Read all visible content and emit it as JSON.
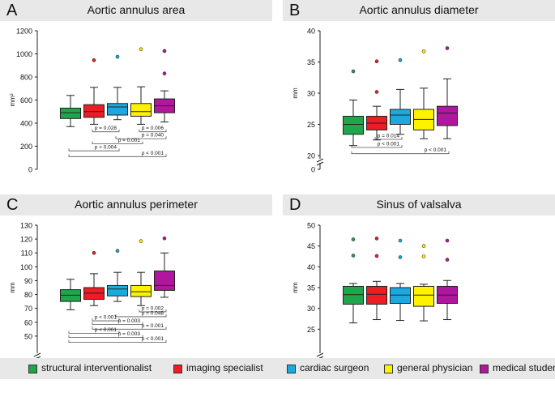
{
  "chart_data": [
    {
      "type": "boxplot",
      "letter": "A",
      "title": "Aortic annulus area",
      "ylabel": "mm²",
      "ylim": [
        0,
        1200
      ],
      "yticks": [
        0,
        200,
        400,
        600,
        800,
        1000,
        1200
      ],
      "axis_break": false,
      "series": [
        {
          "name": "structural interventionalist",
          "whisker_low": 370,
          "q1": 440,
          "median": 490,
          "q3": 530,
          "whisker_high": 640,
          "outliers": []
        },
        {
          "name": "imaging specialist",
          "whisker_low": 390,
          "q1": 450,
          "median": 500,
          "q3": 560,
          "whisker_high": 710,
          "outliers": [
            945
          ]
        },
        {
          "name": "cardiac surgeon",
          "whisker_low": 430,
          "q1": 470,
          "median": 540,
          "q3": 570,
          "whisker_high": 710,
          "outliers": [
            975
          ]
        },
        {
          "name": "general physician",
          "whisker_low": 390,
          "q1": 460,
          "median": 500,
          "q3": 570,
          "whisker_high": 715,
          "outliers": [
            1040
          ]
        },
        {
          "name": "medical student",
          "whisker_low": 410,
          "q1": 490,
          "median": 550,
          "q3": 610,
          "whisker_high": 680,
          "outliers": [
            830,
            1025
          ]
        }
      ],
      "comparisons": [
        {
          "from": 1,
          "to": 2,
          "label": "p = 0.028",
          "y": 325
        },
        {
          "from": 3,
          "to": 4,
          "label": "p = 0.006",
          "y": 325
        },
        {
          "from": 2,
          "to": 4,
          "label": "p = 0.040",
          "y": 265
        },
        {
          "from": 1,
          "to": 3,
          "label": "p = 0.001",
          "y": 220
        },
        {
          "from": 0,
          "to": 2,
          "label": "p = 0.004",
          "y": 160
        },
        {
          "from": 0,
          "to": 4,
          "label": "p < 0.001",
          "y": 110
        }
      ]
    },
    {
      "type": "boxplot",
      "letter": "B",
      "title": "Aortic annulus diameter",
      "ylabel": "mm",
      "ylim": [
        20,
        40
      ],
      "yticks": [
        0,
        20,
        25,
        30,
        35,
        40
      ],
      "axis_break": true,
      "series": [
        {
          "name": "structural interventionalist",
          "whisker_low": 21.6,
          "q1": 23.4,
          "median": 25.0,
          "q3": 26.3,
          "whisker_high": 28.9,
          "outliers": [
            33.5
          ]
        },
        {
          "name": "imaging specialist",
          "whisker_low": 22.5,
          "q1": 24.1,
          "median": 25.2,
          "q3": 26.3,
          "whisker_high": 27.9,
          "outliers": [
            30.2,
            35.1
          ]
        },
        {
          "name": "cardiac surgeon",
          "whisker_low": 23.4,
          "q1": 25.0,
          "median": 26.5,
          "q3": 27.4,
          "whisker_high": 30.6,
          "outliers": [
            35.3
          ]
        },
        {
          "name": "general physician",
          "whisker_low": 22.7,
          "q1": 24.1,
          "median": 25.8,
          "q3": 27.4,
          "whisker_high": 30.8,
          "outliers": [
            36.7
          ]
        },
        {
          "name": "medical student",
          "whisker_low": 22.7,
          "q1": 24.8,
          "median": 26.8,
          "q3": 27.9,
          "whisker_high": 32.3,
          "outliers": [
            37.2
          ]
        }
      ],
      "comparisons": [
        {
          "from": 1,
          "to": 2,
          "label": "p = 0.014",
          "y": 22.6
        },
        {
          "from": 0,
          "to": 2,
          "label": "p < 0.001",
          "y": 21.3
        },
        {
          "from": 0,
          "to": 4,
          "label": "p < 0.001",
          "y": 20.3
        }
      ]
    },
    {
      "type": "boxplot",
      "letter": "C",
      "title": "Aortic annulus perimeter",
      "ylabel": "mm",
      "ylim": [
        40,
        130
      ],
      "yticks": [
        0,
        50,
        60,
        70,
        80,
        90,
        100,
        110,
        120,
        130
      ],
      "axis_break": true,
      "series": [
        {
          "name": "structural interventionalist",
          "whisker_low": 69,
          "q1": 75,
          "median": 79.5,
          "q3": 83.5,
          "whisker_high": 91,
          "outliers": []
        },
        {
          "name": "imaging specialist",
          "whisker_low": 72,
          "q1": 76.5,
          "median": 81,
          "q3": 85,
          "whisker_high": 95,
          "outliers": [
            110
          ]
        },
        {
          "name": "cardiac surgeon",
          "whisker_low": 75,
          "q1": 79,
          "median": 84,
          "q3": 86.5,
          "whisker_high": 96,
          "outliers": [
            111.5
          ]
        },
        {
          "name": "general physician",
          "whisker_low": 72,
          "q1": 78.5,
          "median": 82,
          "q3": 86.5,
          "whisker_high": 96,
          "outliers": [
            118.5
          ]
        },
        {
          "name": "medical student",
          "whisker_low": 78,
          "q1": 83,
          "median": 86.5,
          "q3": 97,
          "whisker_high": 110,
          "outliers": [
            120.5
          ]
        }
      ],
      "comparisons": [
        {
          "from": 3,
          "to": 4,
          "label": "p = 0.002",
          "y": 67.5
        },
        {
          "from": 2,
          "to": 4,
          "label": "p = 0.048",
          "y": 64
        },
        {
          "from": 1,
          "to": 2,
          "label": "p < 0.001",
          "y": 61
        },
        {
          "from": 1,
          "to": 3,
          "label": "p = 0.003",
          "y": 58.5
        },
        {
          "from": 1,
          "to": 4,
          "label": "p = 0.001",
          "y": 55
        },
        {
          "from": 0,
          "to": 2,
          "label": "p < 0.001",
          "y": 52
        },
        {
          "from": 0,
          "to": 3,
          "label": "p = 0.003",
          "y": 49
        },
        {
          "from": 0,
          "to": 4,
          "label": "p < 0.001",
          "y": 45.5
        }
      ]
    },
    {
      "type": "boxplot",
      "letter": "D",
      "title": "Sinus of valsalva",
      "ylabel": "mm",
      "ylim": [
        20,
        50
      ],
      "yticks": [
        0,
        25,
        30,
        35,
        40,
        45,
        50
      ],
      "axis_break": true,
      "series": [
        {
          "name": "structural interventionalist",
          "whisker_low": 26.5,
          "q1": 31.0,
          "median": 33.3,
          "q3": 35.3,
          "whisker_high": 36.0,
          "outliers": [
            42.7,
            46.6
          ]
        },
        {
          "name": "imaging specialist",
          "whisker_low": 27.3,
          "q1": 31.0,
          "median": 33.4,
          "q3": 35.3,
          "whisker_high": 36.5,
          "outliers": [
            42.6,
            46.8
          ]
        },
        {
          "name": "cardiac surgeon",
          "whisker_low": 27.1,
          "q1": 31.2,
          "median": 33.2,
          "q3": 35.0,
          "whisker_high": 36.0,
          "outliers": [
            42.3,
            46.3
          ]
        },
        {
          "name": "general physician",
          "whisker_low": 27.0,
          "q1": 30.5,
          "median": 33.2,
          "q3": 35.3,
          "whisker_high": 35.8,
          "outliers": [
            42.5,
            45.0
          ]
        },
        {
          "name": "medical student",
          "whisker_low": 27.3,
          "q1": 31.2,
          "median": 33.2,
          "q3": 35.3,
          "whisker_high": 36.7,
          "outliers": [
            41.7,
            46.3
          ]
        }
      ],
      "comparisons": []
    }
  ],
  "legend": [
    {
      "label": "structural interventionalist",
      "color": "#1fa64a"
    },
    {
      "label": "imaging specialist",
      "color": "#ee1c24"
    },
    {
      "label": "cardiac surgeon",
      "color": "#1ba9e0"
    },
    {
      "label": "general physician",
      "color": "#fff200"
    },
    {
      "label": "medical student",
      "color": "#b0169e"
    }
  ]
}
